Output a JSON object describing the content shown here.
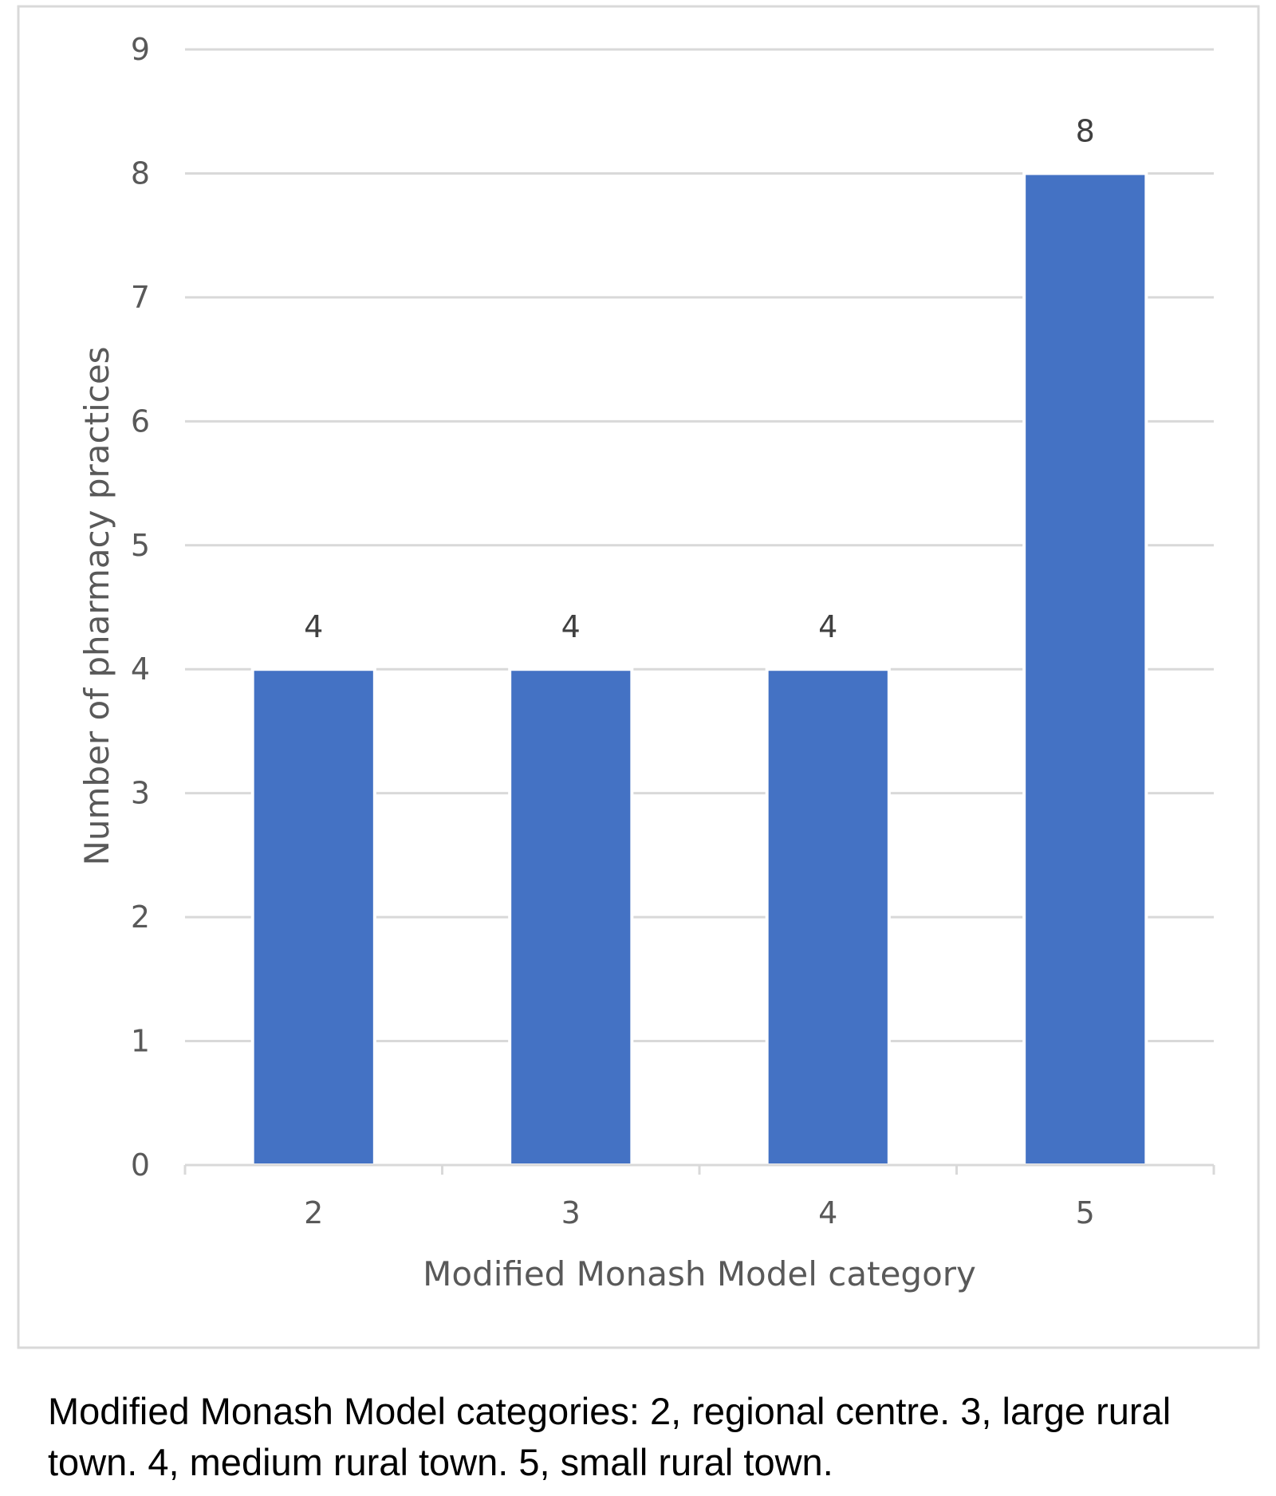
{
  "chart_data": {
    "type": "bar",
    "categories": [
      "2",
      "3",
      "4",
      "5"
    ],
    "values": [
      4,
      4,
      4,
      8
    ],
    "data_labels": [
      "4",
      "4",
      "4",
      "8"
    ],
    "xlabel": "Modified Monash Model category",
    "ylabel": "Number of pharmacy practices",
    "ylim": [
      0,
      9
    ],
    "yticks": [
      "0",
      "1",
      "2",
      "3",
      "4",
      "5",
      "6",
      "7",
      "8",
      "9"
    ],
    "grid": true,
    "legend": "none",
    "bar_color": "#4472C4",
    "gridline_color": "#D9D9D9",
    "frame_color": "#D9D9D9"
  },
  "caption": "Modified Monash Model categories: 2, regional centre. 3, large rural town. 4, medium rural town. 5, small rural town."
}
